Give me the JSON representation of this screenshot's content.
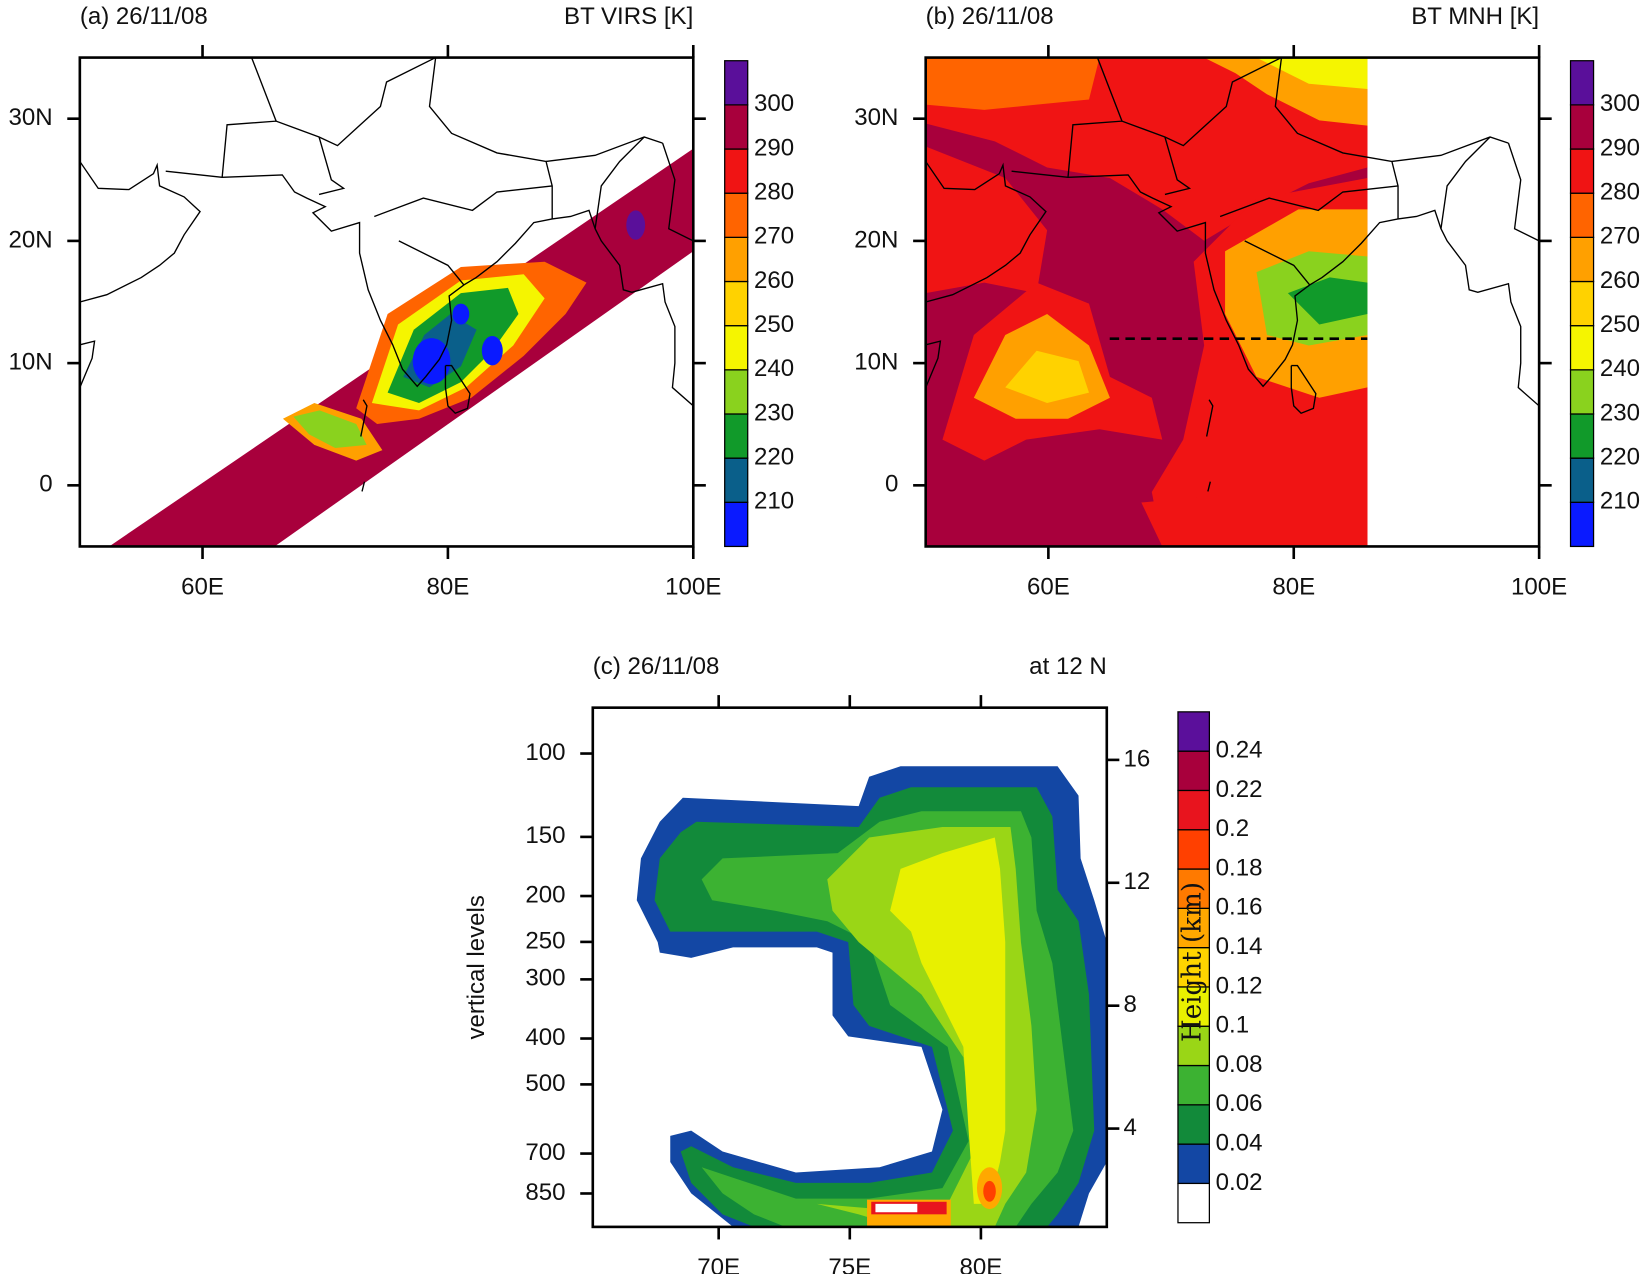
{
  "chart_data": [
    {
      "type": "map",
      "panel_label": "(a) 26/11/08",
      "title": "BT VIRS [K]",
      "xlim": [
        50,
        100
      ],
      "xticks": [
        {
          "value": 60,
          "label": "60E"
        },
        {
          "value": 80,
          "label": "80E"
        },
        {
          "value": 100,
          "label": "100E"
        }
      ],
      "ylim": [
        -5,
        35
      ],
      "yticks": [
        0,
        {
          "value": 10,
          "label": "10N"
        },
        {
          "value": 20,
          "label": "20N"
        },
        {
          "value": 30,
          "label": "30N"
        }
      ],
      "colorbar": {
        "levels": [
          210,
          220,
          230,
          240,
          250,
          260,
          270,
          280,
          290,
          300
        ],
        "colors": [
          "#0a1aff",
          "#0a5f8a",
          "#119a2a",
          "#8ad21e",
          "#f5f500",
          "#ffd200",
          "#ffa000",
          "#ff6400",
          "#f01414",
          "#a8003c",
          "#5a0f9a"
        ]
      }
    },
    {
      "type": "map",
      "panel_label": "(b) 26/11/08",
      "title": "BT MNH [K]",
      "xlim": [
        50,
        100
      ],
      "xticks": [
        {
          "value": 60,
          "label": "60E"
        },
        {
          "value": 80,
          "label": "80E"
        },
        {
          "value": 100,
          "label": "100E"
        }
      ],
      "ylim": [
        -5,
        35
      ],
      "yticks": [
        0,
        {
          "value": 10,
          "label": "10N"
        },
        {
          "value": 20,
          "label": "20N"
        },
        {
          "value": 30,
          "label": "30N"
        }
      ],
      "colorbar": {
        "levels": [
          210,
          220,
          230,
          240,
          250,
          260,
          270,
          280,
          290,
          300
        ],
        "colors": [
          "#0a1aff",
          "#0a5f8a",
          "#119a2a",
          "#8ad21e",
          "#f5f500",
          "#ffd200",
          "#ffa000",
          "#ff6400",
          "#f01414",
          "#a8003c",
          "#5a0f9a"
        ]
      }
    },
    {
      "type": "contour",
      "panel_label": "(c) 26/11/08",
      "title": "at 12 N",
      "ylabel": "vertical levels",
      "y2label": "Height (km)",
      "xlim": [
        65.2,
        84.8
      ],
      "xticks": [
        {
          "value": 70,
          "label": "70E"
        },
        {
          "value": 75,
          "label": "75E"
        },
        {
          "value": 80,
          "label": "80E"
        }
      ],
      "ylim": [
        1000,
        80
      ],
      "log_y": true,
      "yticks": [
        100,
        150,
        200,
        250,
        300,
        400,
        500,
        700,
        850
      ],
      "y2lim": [
        0.8,
        17.7
      ],
      "y2ticks": [
        4,
        8,
        12,
        16
      ],
      "colorbar": {
        "levels": [
          0.02,
          0.04,
          0.06,
          0.08,
          0.1,
          0.12,
          0.14,
          0.16,
          0.18,
          0.2,
          0.22,
          0.24
        ],
        "colors": [
          "#ffffff",
          "#1347a4",
          "#128a3a",
          "#3cb232",
          "#9ad616",
          "#e8f000",
          "#ffd400",
          "#ffa800",
          "#ff7a00",
          "#ff4000",
          "#e8141e",
          "#a8003c",
          "#5b0f9b"
        ]
      }
    }
  ]
}
